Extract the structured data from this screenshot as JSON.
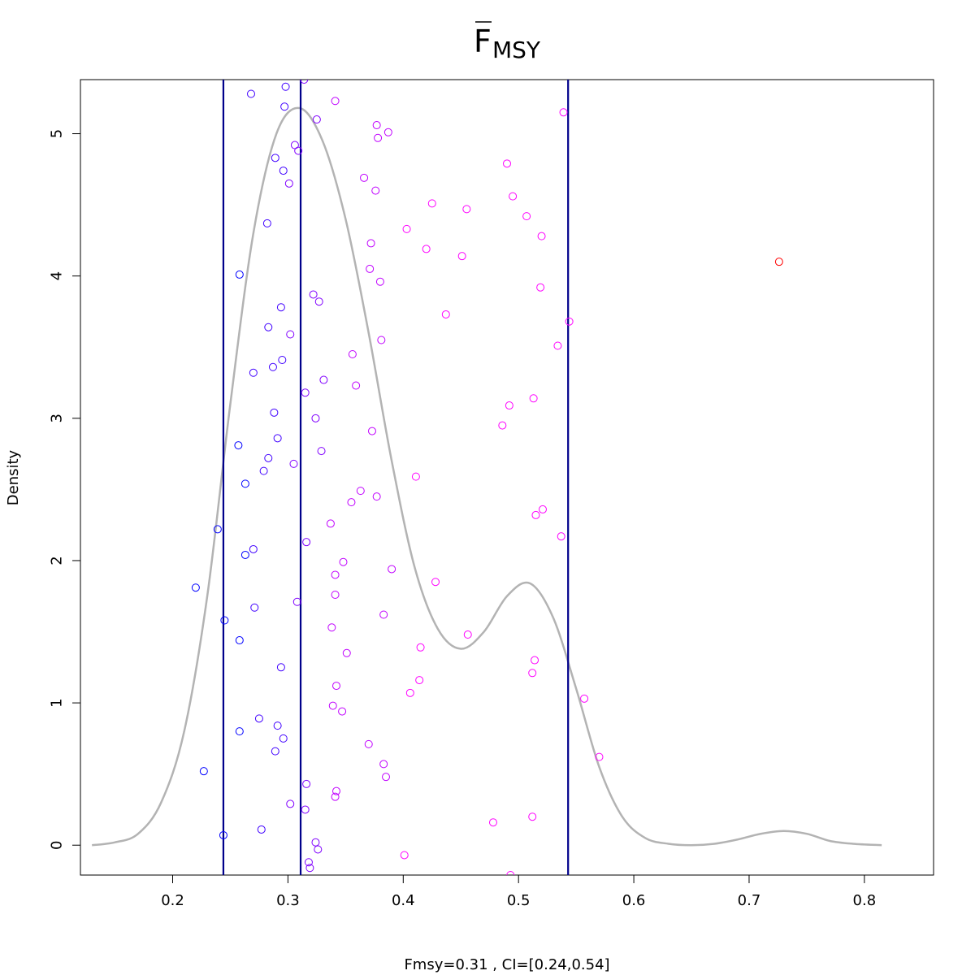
{
  "chart_data": {
    "type": "scatter",
    "title": {
      "main": "F",
      "subscript": "MSY",
      "overline": true
    },
    "xlabel": "Fmsy=0.31 , CI=[0.24,0.54]",
    "ylabel": "Density",
    "xlim": [
      0.12,
      0.86
    ],
    "ylim": [
      -0.21,
      5.38
    ],
    "x_ticks": [
      0.2,
      0.3,
      0.4,
      0.5,
      0.6,
      0.7,
      0.8
    ],
    "x_tick_labels": [
      "0.2",
      "0.3",
      "0.4",
      "0.5",
      "0.6",
      "0.7",
      "0.8"
    ],
    "y_ticks": [
      0,
      1,
      2,
      3,
      4,
      5
    ],
    "y_tick_labels": [
      "0",
      "1",
      "2",
      "3",
      "4",
      "5"
    ],
    "grid": false,
    "vertical_lines": {
      "values": [
        0.244,
        0.311,
        0.543
      ],
      "color": "#00008b"
    },
    "density_curve": {
      "color": "#b3b3b3",
      "x": [
        0.13,
        0.15,
        0.17,
        0.19,
        0.21,
        0.23,
        0.25,
        0.27,
        0.29,
        0.31,
        0.33,
        0.35,
        0.37,
        0.39,
        0.41,
        0.43,
        0.45,
        0.47,
        0.49,
        0.51,
        0.53,
        0.55,
        0.57,
        0.59,
        0.61,
        0.63,
        0.65,
        0.67,
        0.69,
        0.71,
        0.73,
        0.75,
        0.77,
        0.79,
        0.815
      ],
      "y": [
        0.0,
        0.02,
        0.08,
        0.3,
        0.8,
        1.75,
        3.1,
        4.3,
        5.0,
        5.18,
        4.95,
        4.4,
        3.6,
        2.7,
        1.95,
        1.52,
        1.38,
        1.5,
        1.75,
        1.84,
        1.6,
        1.1,
        0.55,
        0.2,
        0.05,
        0.01,
        0.0,
        0.01,
        0.04,
        0.08,
        0.1,
        0.08,
        0.03,
        0.01,
        0.0
      ]
    },
    "series": [
      {
        "color": "#0000ff",
        "points": [
          [
            0.22,
            1.81
          ],
          [
            0.227,
            0.52
          ],
          [
            0.239,
            2.22
          ],
          [
            0.244,
            0.07
          ],
          [
            0.245,
            1.58
          ],
          [
            0.257,
            2.81
          ],
          [
            0.258,
            4.01
          ],
          [
            0.258,
            1.44
          ],
          [
            0.258,
            0.8
          ],
          [
            0.263,
            2.04
          ],
          [
            0.263,
            2.54
          ]
        ]
      },
      {
        "color": "#4000ff",
        "points": [
          [
            0.268,
            5.28
          ],
          [
            0.27,
            3.32
          ],
          [
            0.27,
            2.08
          ],
          [
            0.271,
            1.67
          ],
          [
            0.275,
            0.89
          ],
          [
            0.277,
            0.11
          ],
          [
            0.279,
            2.63
          ],
          [
            0.282,
            4.37
          ],
          [
            0.283,
            3.64
          ],
          [
            0.283,
            2.72
          ],
          [
            0.287,
            3.36
          ],
          [
            0.288,
            3.04
          ],
          [
            0.289,
            4.83
          ],
          [
            0.289,
            0.66
          ],
          [
            0.291,
            2.86
          ],
          [
            0.291,
            0.84
          ],
          [
            0.294,
            1.25
          ],
          [
            0.294,
            3.78
          ],
          [
            0.295,
            3.41
          ],
          [
            0.296,
            4.74
          ],
          [
            0.296,
            0.75
          ],
          [
            0.297,
            5.19
          ],
          [
            0.298,
            5.33
          ]
        ]
      },
      {
        "color": "#8000ff",
        "points": [
          [
            0.301,
            4.65
          ],
          [
            0.302,
            3.59
          ],
          [
            0.302,
            0.29
          ],
          [
            0.305,
            2.68
          ],
          [
            0.306,
            4.92
          ],
          [
            0.308,
            1.71
          ],
          [
            0.309,
            4.88
          ],
          [
            0.314,
            5.38
          ],
          [
            0.315,
            0.25
          ],
          [
            0.315,
            3.18
          ],
          [
            0.316,
            2.13
          ],
          [
            0.316,
            0.43
          ],
          [
            0.318,
            -0.12
          ],
          [
            0.319,
            -0.16
          ],
          [
            0.322,
            3.87
          ],
          [
            0.324,
            0.02
          ],
          [
            0.324,
            3.0
          ],
          [
            0.325,
            5.1
          ],
          [
            0.326,
            -0.03
          ],
          [
            0.327,
            3.82
          ],
          [
            0.329,
            2.77
          ],
          [
            0.331,
            3.27
          ]
        ]
      },
      {
        "color": "#c000ff",
        "points": [
          [
            0.337,
            2.26
          ],
          [
            0.338,
            1.53
          ],
          [
            0.339,
            0.98
          ],
          [
            0.341,
            5.23
          ],
          [
            0.341,
            1.9
          ],
          [
            0.341,
            1.76
          ],
          [
            0.341,
            0.34
          ],
          [
            0.342,
            0.38
          ],
          [
            0.342,
            1.12
          ],
          [
            0.347,
            0.94
          ],
          [
            0.348,
            1.99
          ],
          [
            0.351,
            1.35
          ],
          [
            0.355,
            2.41
          ],
          [
            0.356,
            3.45
          ],
          [
            0.359,
            3.23
          ],
          [
            0.363,
            2.49
          ],
          [
            0.366,
            4.69
          ],
          [
            0.37,
            0.71
          ],
          [
            0.371,
            4.05
          ],
          [
            0.372,
            4.23
          ],
          [
            0.373,
            2.91
          ],
          [
            0.376,
            4.6
          ],
          [
            0.377,
            5.06
          ],
          [
            0.377,
            2.45
          ],
          [
            0.378,
            4.97
          ],
          [
            0.38,
            3.96
          ],
          [
            0.381,
            3.55
          ],
          [
            0.383,
            1.62
          ],
          [
            0.383,
            0.57
          ],
          [
            0.385,
            0.48
          ],
          [
            0.387,
            5.01
          ],
          [
            0.39,
            1.94
          ]
        ]
      },
      {
        "color": "#ff00ff",
        "points": [
          [
            0.401,
            -0.07
          ],
          [
            0.403,
            4.33
          ],
          [
            0.406,
            1.07
          ],
          [
            0.411,
            2.59
          ],
          [
            0.414,
            1.16
          ],
          [
            0.415,
            1.39
          ],
          [
            0.42,
            4.19
          ],
          [
            0.425,
            4.51
          ],
          [
            0.428,
            1.85
          ],
          [
            0.437,
            3.73
          ],
          [
            0.451,
            4.14
          ],
          [
            0.455,
            4.47
          ],
          [
            0.456,
            1.48
          ],
          [
            0.478,
            0.16
          ],
          [
            0.486,
            2.95
          ],
          [
            0.49,
            4.79
          ],
          [
            0.492,
            3.09
          ],
          [
            0.493,
            -0.21
          ],
          [
            0.495,
            4.56
          ],
          [
            0.507,
            4.42
          ],
          [
            0.512,
            1.21
          ],
          [
            0.512,
            0.2
          ],
          [
            0.513,
            3.14
          ],
          [
            0.514,
            1.3
          ],
          [
            0.515,
            2.32
          ],
          [
            0.519,
            3.92
          ],
          [
            0.52,
            4.28
          ],
          [
            0.521,
            2.36
          ],
          [
            0.534,
            3.51
          ],
          [
            0.537,
            2.17
          ],
          [
            0.539,
            5.15
          ],
          [
            0.544,
            3.68
          ],
          [
            0.557,
            1.03
          ],
          [
            0.57,
            0.62
          ]
        ]
      },
      {
        "color": "#ff0000",
        "points": [
          [
            0.726,
            4.1
          ]
        ]
      }
    ]
  }
}
